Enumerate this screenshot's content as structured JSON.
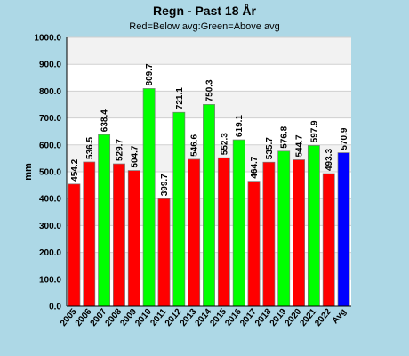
{
  "chart_data": {
    "type": "bar",
    "title": "Regn - Past 18 År",
    "subtitle": "Red=Below avg:Green=Above avg",
    "ylabel": "mm",
    "xlabel": "",
    "ylim": [
      0,
      1000
    ],
    "yticks": [
      "0.0",
      "100.0",
      "200.0",
      "300.0",
      "400.0",
      "500.0",
      "600.0",
      "700.0",
      "800.0",
      "900.0",
      "1000.0"
    ],
    "grid": true,
    "categories": [
      "2005",
      "2006",
      "2007",
      "2008",
      "2009",
      "2010",
      "2011",
      "2012",
      "2013",
      "2014",
      "2015",
      "2016",
      "2017",
      "2018",
      "2019",
      "2020",
      "2021",
      "2022",
      "Avg"
    ],
    "values": [
      454.2,
      536.5,
      638.4,
      529.7,
      504.7,
      809.7,
      399.7,
      721.1,
      546.6,
      750.3,
      552.3,
      619.1,
      464.7,
      535.7,
      576.8,
      544.7,
      597.9,
      493.3,
      570.9
    ],
    "value_labels": [
      "454.2",
      "536.5",
      "638.4",
      "529.7",
      "504.7",
      "809.7",
      "399.7",
      "721.1",
      "546.6",
      "750.3",
      "552.3",
      "619.1",
      "464.7",
      "535.7",
      "576.8",
      "544.7",
      "597.9",
      "493.3",
      "570.9"
    ],
    "average": 570.9,
    "colors": {
      "below": "#ff0000",
      "above": "#00ff00",
      "avg": "#0000ff",
      "background": "#add8e6",
      "plot_band_light": "#ffffff",
      "plot_band_dark": "#f2f2f2"
    }
  }
}
